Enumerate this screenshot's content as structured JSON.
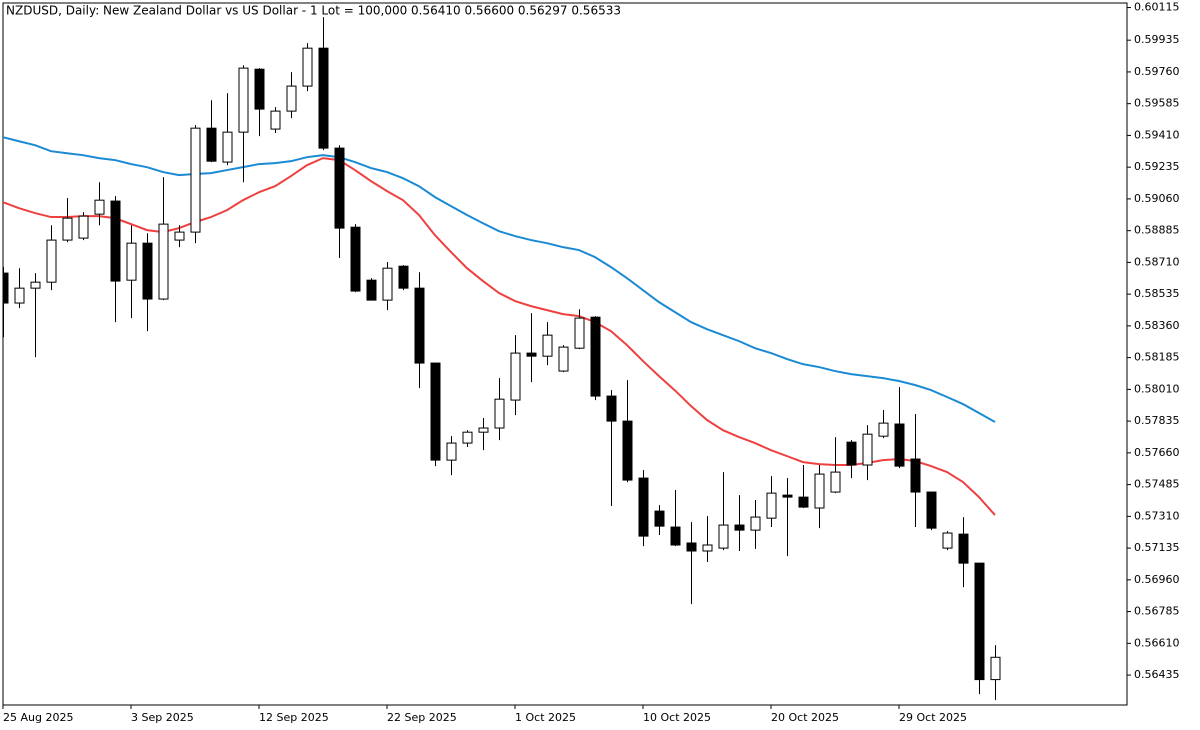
{
  "chart_data": {
    "type": "candlestick",
    "title": "NZDUSD, Daily:  New Zealand Dollar vs US Dollar - 1 Lot = 100,000  0.56410 0.56600 0.56297 0.56533",
    "categories": [
      "25 Aug 2025",
      null,
      null,
      null,
      null,
      null,
      null,
      null,
      "3 Sep 2025",
      null,
      null,
      null,
      null,
      null,
      null,
      null,
      "12 Sep 2025",
      null,
      null,
      null,
      null,
      null,
      null,
      null,
      "22 Sep 2025",
      null,
      null,
      null,
      null,
      null,
      null,
      null,
      "1 Oct 2025",
      null,
      null,
      null,
      null,
      null,
      null,
      null,
      "10 Oct 2025",
      null,
      null,
      null,
      null,
      null,
      null,
      null,
      "20 Oct 2025",
      null,
      null,
      null,
      null,
      null,
      null,
      null,
      "29 Oct 2025",
      null,
      null,
      null,
      null,
      null,
      null
    ],
    "open": [
      0.58651,
      0.58486,
      0.58568,
      0.58601,
      0.58833,
      0.58844,
      0.58976,
      0.59048,
      0.58612,
      0.58816,
      0.58508,
      0.58833,
      0.58877,
      0.5945,
      0.59263,
      0.59428,
      0.59775,
      0.59445,
      0.59544,
      0.59682,
      0.59891,
      0.5934,
      0.58904,
      0.58612,
      0.58502,
      0.58689,
      0.58568,
      0.58155,
      0.5762,
      0.57714,
      0.57774,
      0.57797,
      0.57951,
      0.5821,
      0.58193,
      0.58111,
      0.58237,
      0.58408,
      0.57973,
      0.57835,
      0.57521,
      0.57339,
      0.57251,
      0.57163,
      0.57119,
      0.57135,
      0.57262,
      0.57234,
      0.573,
      0.57427,
      0.57416,
      0.57356,
      0.57444,
      0.57719,
      0.57593,
      0.57752,
      0.57819,
      0.57626,
      0.57444,
      0.57135,
      0.57212,
      0.57052,
      0.5641
    ],
    "high": [
      0.58684,
      0.58678,
      0.58651,
      0.58915,
      0.59064,
      0.58987,
      0.59152,
      0.59075,
      0.58915,
      0.58871,
      0.5918,
      0.58915,
      0.59467,
      0.59604,
      0.59643,
      0.59797,
      0.59781,
      0.59566,
      0.59759,
      0.59919,
      0.60062,
      0.59356,
      0.58921,
      0.58623,
      0.58712,
      0.58695,
      0.58656,
      0.58155,
      0.57752,
      0.57785,
      0.57852,
      0.58072,
      0.58309,
      0.5843,
      0.58381,
      0.58254,
      0.58452,
      0.58414,
      0.58006,
      0.58061,
      0.57565,
      0.57372,
      0.57455,
      0.57278,
      0.57311,
      0.57554,
      0.57427,
      0.574,
      0.57532,
      0.57521,
      0.57593,
      0.57593,
      0.57747,
      0.5773,
      0.57813,
      0.57896,
      0.58023,
      0.57874,
      0.57444,
      0.57229,
      0.57306,
      0.57052,
      0.566
    ],
    "low": [
      0.58298,
      0.58458,
      0.58188,
      0.58557,
      0.58822,
      0.58833,
      0.58915,
      0.58381,
      0.58403,
      0.58331,
      0.58502,
      0.58794,
      0.58816,
      0.59263,
      0.59246,
      0.59152,
      0.59406,
      0.59423,
      0.59505,
      0.59654,
      0.59329,
      0.58734,
      0.58546,
      0.58502,
      0.58447,
      0.58557,
      0.58017,
      0.57587,
      0.57537,
      0.57692,
      0.57675,
      0.5773,
      0.57868,
      0.5805,
      0.58144,
      0.58105,
      0.58232,
      0.57951,
      0.57367,
      0.57499,
      0.57146,
      0.57207,
      0.57146,
      0.56826,
      0.57058,
      0.57124,
      0.57119,
      0.5713,
      0.57251,
      0.57091,
      0.57356,
      0.57245,
      0.57438,
      0.57521,
      0.5751,
      0.57741,
      0.57576,
      0.57251,
      0.57234,
      0.57124,
      0.5692,
      0.5633,
      0.56297
    ],
    "close": [
      0.58486,
      0.58568,
      0.58601,
      0.58833,
      0.58954,
      0.58965,
      0.59053,
      0.58607,
      0.58816,
      0.58508,
      0.58921,
      0.58877,
      0.5945,
      0.59268,
      0.59428,
      0.59781,
      0.59555,
      0.59544,
      0.59682,
      0.59891,
      0.5934,
      0.58899,
      0.58552,
      0.58502,
      0.58678,
      0.58568,
      0.58155,
      0.5762,
      0.57714,
      0.57774,
      0.57797,
      0.57956,
      0.5821,
      0.58193,
      0.58309,
      0.58243,
      0.58403,
      0.57973,
      0.57835,
      0.5751,
      0.57201,
      0.57256,
      0.57152,
      0.57119,
      0.57152,
      0.57262,
      0.57234,
      0.57306,
      0.57438,
      0.57416,
      0.57361,
      0.57543,
      0.57554,
      0.57593,
      0.57763,
      0.57824,
      0.57587,
      0.57444,
      0.57245,
      0.57218,
      0.57052,
      0.5641,
      0.56533
    ],
    "bull_color": "#ffffff",
    "bear_color": "#000000",
    "overlays": [
      {
        "color": "#1a8ad4",
        "values": [
          0.594,
          0.59378,
          0.59356,
          0.59323,
          0.59312,
          0.59301,
          0.59285,
          0.59274,
          0.59252,
          0.59235,
          0.59208,
          0.59191,
          0.59197,
          0.59202,
          0.59219,
          0.59235,
          0.59252,
          0.59257,
          0.59268,
          0.5929,
          0.59301,
          0.5929,
          0.59263,
          0.5923,
          0.59208,
          0.59174,
          0.5913,
          0.5907,
          0.5902,
          0.58971,
          0.58926,
          0.58882,
          0.58855,
          0.58833,
          0.58816,
          0.58794,
          0.58778,
          0.58739,
          0.58684,
          0.58623,
          0.58557,
          0.58491,
          0.58436,
          0.58381,
          0.58342,
          0.58309,
          0.58276,
          0.58237,
          0.5821,
          0.58177,
          0.58149,
          0.58133,
          0.58111,
          0.58094,
          0.58083,
          0.58072,
          0.58056,
          0.58034,
          0.58006,
          0.57968,
          0.57929,
          0.5788,
          0.5783
        ]
      },
      {
        "color": "#ef4040",
        "values": [
          0.59042,
          0.59009,
          0.58982,
          0.5896,
          0.5896,
          0.58965,
          0.58965,
          0.58954,
          0.58921,
          0.58888,
          0.58877,
          0.58899,
          0.58932,
          0.5896,
          0.58998,
          0.59053,
          0.59097,
          0.5913,
          0.59186,
          0.59246,
          0.59285,
          0.59274,
          0.59219,
          0.59158,
          0.59103,
          0.59053,
          0.58971,
          0.5886,
          0.58767,
          0.58678,
          0.58607,
          0.58541,
          0.58497,
          0.58469,
          0.58447,
          0.58425,
          0.58414,
          0.58381,
          0.58331,
          0.58254,
          0.58166,
          0.58083,
          0.58004,
          0.57918,
          0.57841,
          0.57785,
          0.57747,
          0.57714,
          0.57675,
          0.57642,
          0.57609,
          0.57598,
          0.57593,
          0.57593,
          0.57604,
          0.5762,
          0.57626,
          0.57615,
          0.57587,
          0.57554,
          0.57499,
          0.57416,
          0.57317
        ]
      }
    ],
    "ylim": [
      0.5627,
      0.6014
    ],
    "yticks": [
      {
        "value": 0.60115,
        "label": "0.60115"
      },
      {
        "value": 0.59935,
        "label": "0.59935"
      },
      {
        "value": 0.5976,
        "label": "0.59760"
      },
      {
        "value": 0.59585,
        "label": "0.59585"
      },
      {
        "value": 0.5941,
        "label": "0.59410"
      },
      {
        "value": 0.59235,
        "label": "0.59235"
      },
      {
        "value": 0.5906,
        "label": "0.59060"
      },
      {
        "value": 0.58885,
        "label": "0.58885"
      },
      {
        "value": 0.5871,
        "label": "0.58710"
      },
      {
        "value": 0.58535,
        "label": "0.58535"
      },
      {
        "value": 0.5836,
        "label": "0.58360"
      },
      {
        "value": 0.58185,
        "label": "0.58185"
      },
      {
        "value": 0.5801,
        "label": "0.58010"
      },
      {
        "value": 0.57835,
        "label": "0.57835"
      },
      {
        "value": 0.5766,
        "label": "0.57660"
      },
      {
        "value": 0.57485,
        "label": "0.57485"
      },
      {
        "value": 0.5731,
        "label": "0.57310"
      },
      {
        "value": 0.57135,
        "label": "0.57135"
      },
      {
        "value": 0.5696,
        "label": "0.56960"
      },
      {
        "value": 0.56785,
        "label": "0.56785"
      },
      {
        "value": 0.5661,
        "label": "0.56610"
      },
      {
        "value": 0.56435,
        "label": "0.56435"
      }
    ],
    "grid": false
  }
}
